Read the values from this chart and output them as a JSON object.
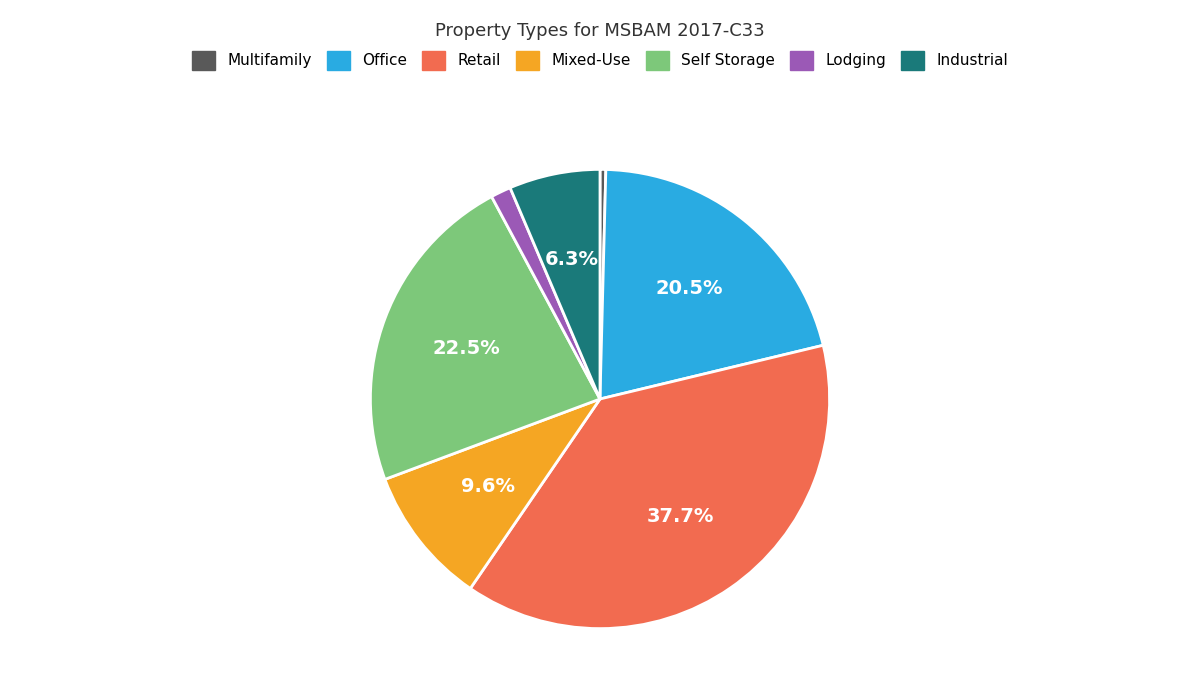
{
  "title": "Property Types for MSBAM 2017-C33",
  "slices": [
    {
      "label": "Multifamily",
      "value": 0.4,
      "color": "#595959"
    },
    {
      "label": "Office",
      "value": 20.5,
      "color": "#29ABE2"
    },
    {
      "label": "Retail",
      "value": 37.7,
      "color": "#F26B50"
    },
    {
      "label": "Mixed-Use",
      "value": 9.6,
      "color": "#F5A623"
    },
    {
      "label": "Self Storage",
      "value": 22.5,
      "color": "#7DC87A"
    },
    {
      "label": "Lodging",
      "value": 1.4,
      "color": "#9B59B6"
    },
    {
      "label": "Industrial",
      "value": 6.3,
      "color": "#1A7A7A"
    }
  ],
  "pct_labels": {
    "Multifamily": "",
    "Office": "20.5%",
    "Retail": "37.7%",
    "Mixed-Use": "9.6%",
    "Self Storage": "22.5%",
    "Lodging": "",
    "Industrial": "6.3%"
  },
  "background_color": "#FFFFFF",
  "title_fontsize": 13,
  "legend_fontsize": 11,
  "label_fontsize": 14
}
